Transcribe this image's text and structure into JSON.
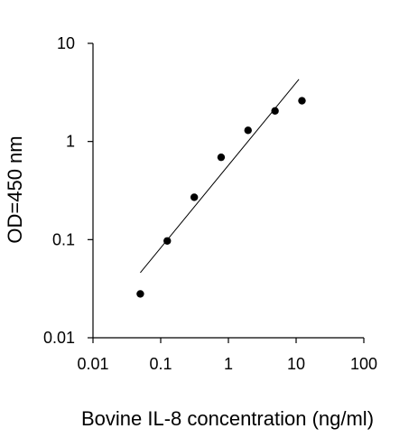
{
  "chart_data": {
    "type": "scatter",
    "title": "",
    "xlabel": "Bovine IL-8 concentration (ng/ml)",
    "ylabel": "OD=450 nm",
    "xscale": "log",
    "yscale": "log",
    "xlim": [
      0.01,
      100
    ],
    "ylim": [
      0.01,
      10
    ],
    "x_ticks": [
      "0.01",
      "0.1",
      "1",
      "10",
      "100"
    ],
    "y_ticks": [
      "0.01",
      "0.1",
      "1",
      "10"
    ],
    "grid": false,
    "legend": "none",
    "series": [
      {
        "kind": "points",
        "x": [
          0.05,
          0.125,
          0.313,
          0.781,
          1.95,
          4.88,
          12.2
        ],
        "y": [
          0.028,
          0.097,
          0.27,
          0.69,
          1.3,
          2.05,
          2.6
        ]
      },
      {
        "kind": "fit-line",
        "x": [
          0.05,
          11.0
        ],
        "y": [
          0.046,
          4.3
        ]
      }
    ],
    "colors": {
      "points": "#000000",
      "line": "#000000",
      "axes": "#000000"
    }
  }
}
